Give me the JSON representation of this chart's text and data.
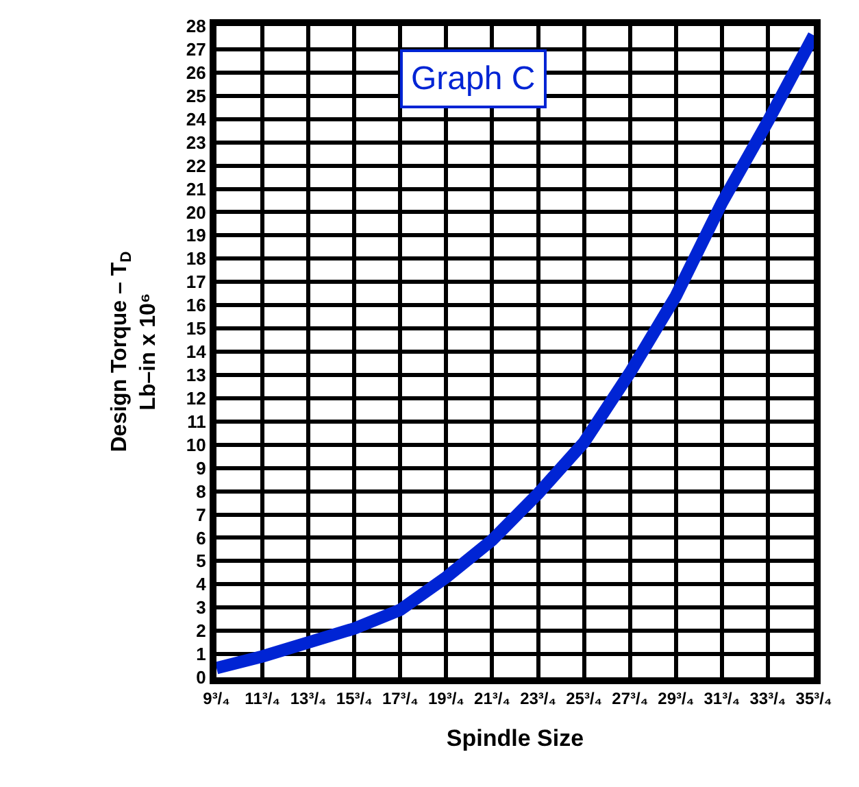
{
  "chart_data": {
    "type": "line",
    "title": "Graph C",
    "xlabel": "Spindle Size",
    "ylabel": "Design Torque – T$_{D}$\nLb–in x 10⁶",
    "categories": [
      "9³/₄",
      "11³/₄",
      "13³/₄",
      "15³/₄",
      "17³/₄",
      "19³/₄",
      "21³/₄",
      "23³/₄",
      "25³/₄",
      "27³/₄",
      "29³/₄",
      "31³/₄",
      "33³/₄",
      "35³/₄"
    ],
    "series": [
      {
        "color": "#0024d4",
        "values": [
          0.4,
          0.9,
          1.5,
          2.1,
          2.9,
          4.3,
          5.9,
          7.9,
          10.1,
          13.1,
          16.4,
          20.4,
          23.9,
          27.6
        ]
      }
    ],
    "ylim": [
      0,
      28
    ],
    "yticks": [
      0,
      1,
      2,
      3,
      4,
      5,
      6,
      7,
      8,
      9,
      10,
      11,
      12,
      13,
      14,
      15,
      16,
      17,
      18,
      19,
      20,
      21,
      22,
      23,
      24,
      25,
      26,
      27,
      28
    ],
    "grid": true,
    "marker": "none",
    "line_style": "solid"
  }
}
